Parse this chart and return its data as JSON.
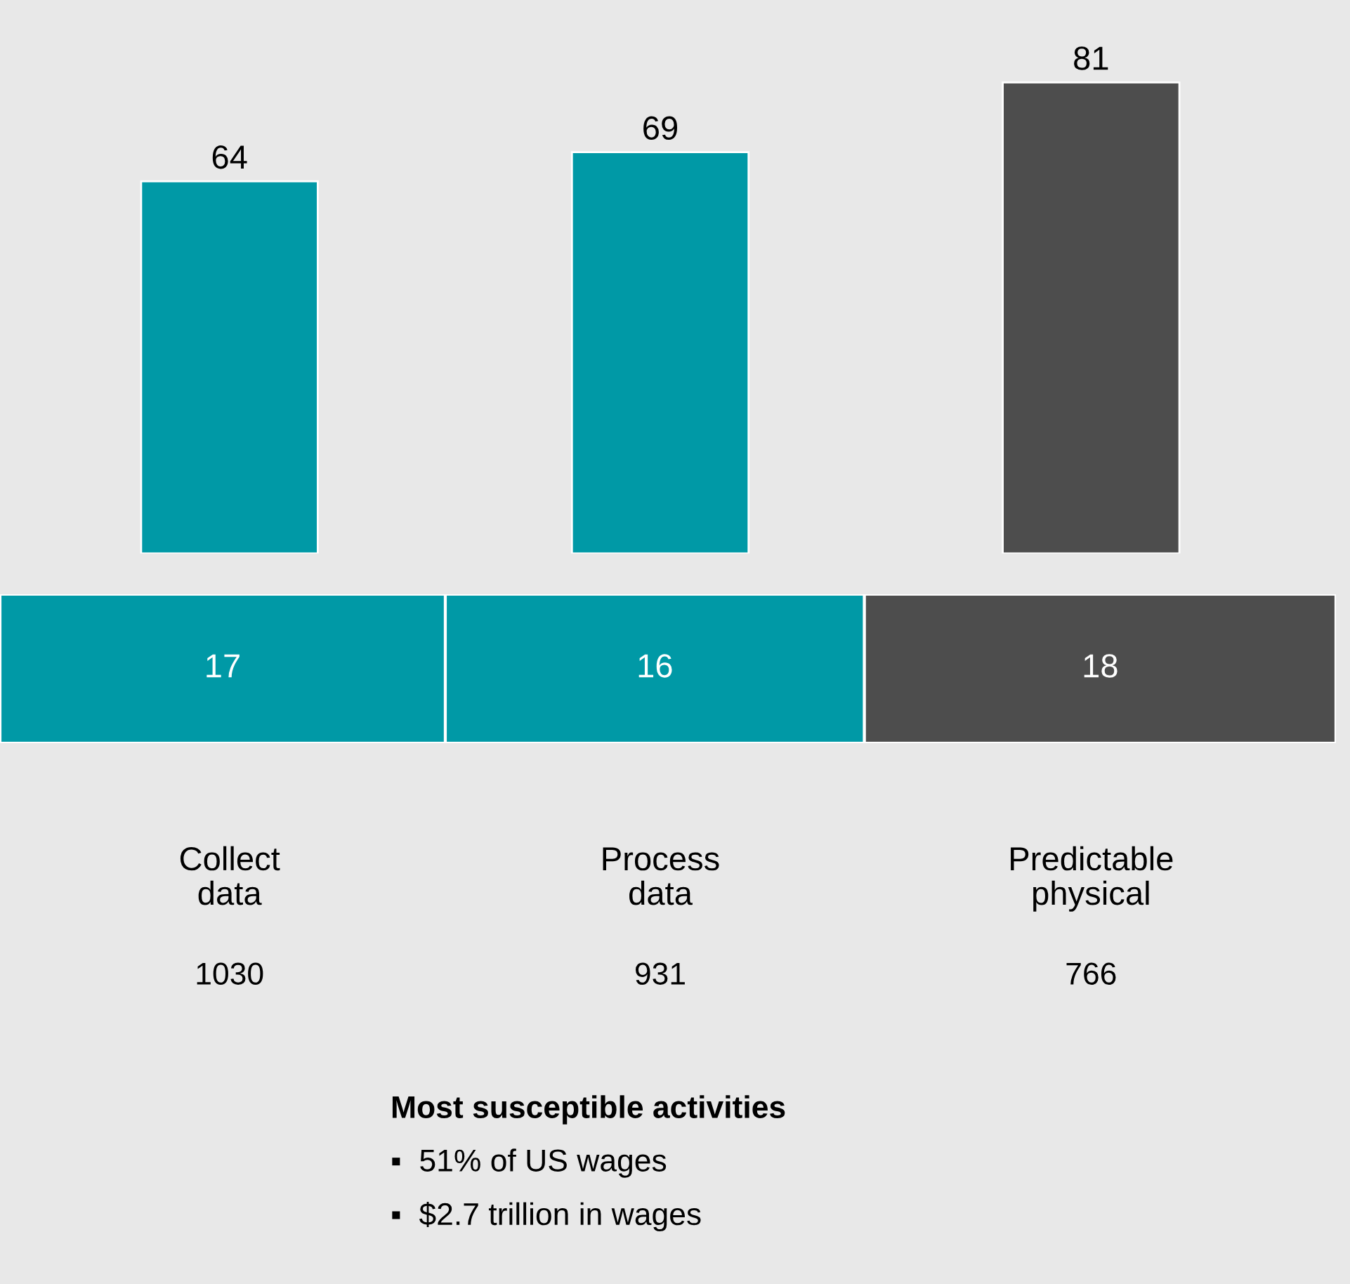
{
  "chart_data": [
    {
      "type": "bar",
      "categories": [
        "Collect\ndata",
        "Process\ndata",
        "Predictable\nphysical"
      ],
      "values": [
        64,
        69,
        81
      ],
      "colors": [
        "#0099a6",
        "#0099a6",
        "#4d4d4d"
      ],
      "data_labels": true,
      "tick_labels": "x",
      "annotations": [
        "1030",
        "931",
        "766",
        "Most susceptible activities",
        "▪  51% of US wages",
        "▪  $2.7 trillion in wages"
      ]
    },
    {
      "type": "bar",
      "orientation": "horizontal",
      "stacked": true,
      "categories": [
        null
      ],
      "data_labels": true,
      "tick_labels": false,
      "series": [
        {
          "color": "#0099a6",
          "values": [
            17
          ]
        },
        {
          "color": "#0099a6",
          "values": [
            16
          ]
        },
        {
          "color": "#4d4d4d",
          "values": [
            18
          ]
        }
      ]
    }
  ]
}
